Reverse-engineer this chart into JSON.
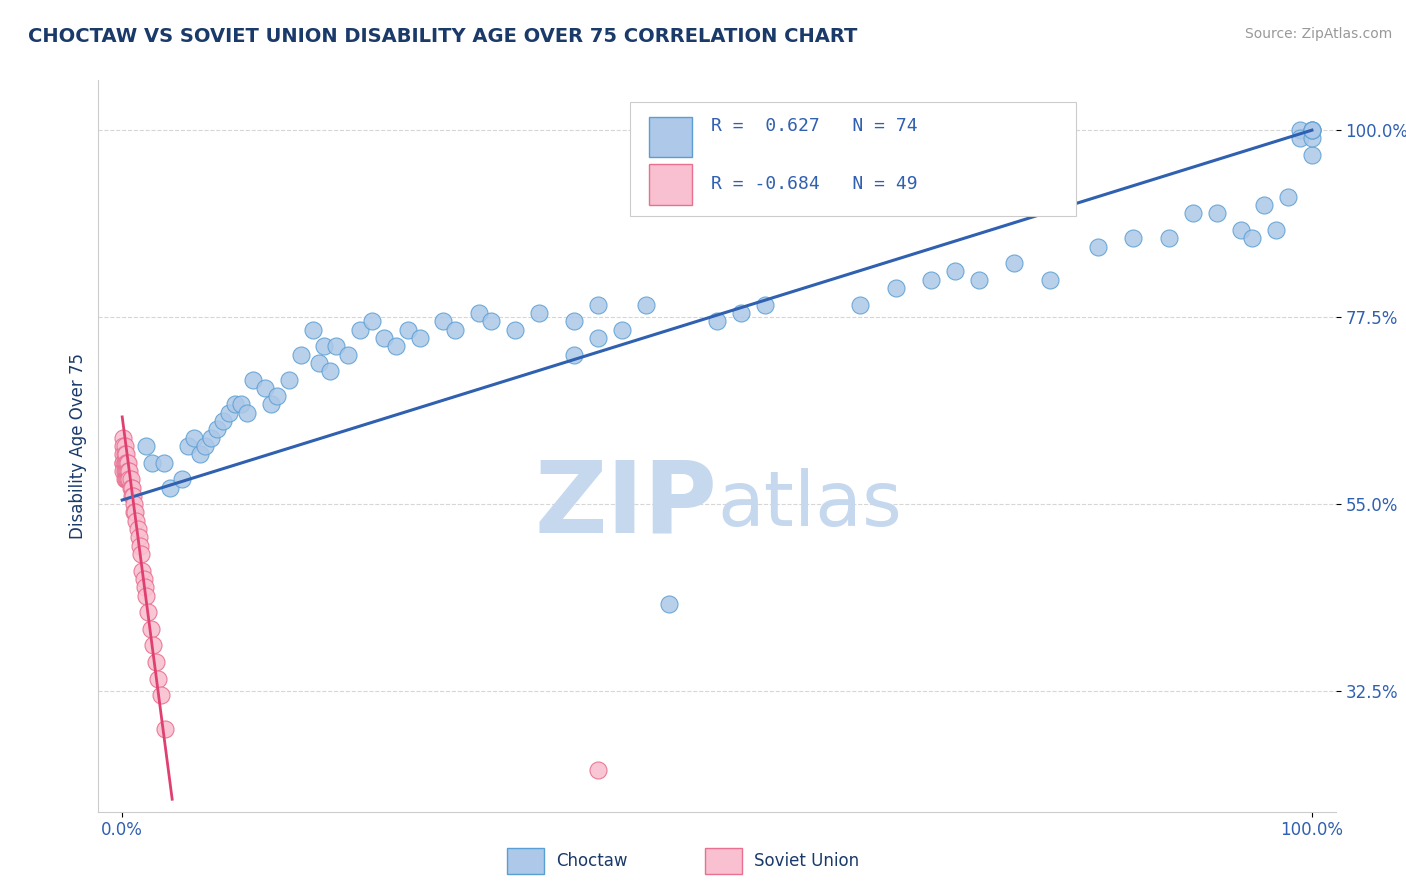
{
  "title": "CHOCTAW VS SOVIET UNION DISABILITY AGE OVER 75 CORRELATION CHART",
  "source": "Source: ZipAtlas.com",
  "ylabel": "Disability Age Over 75",
  "xlim": [
    -0.02,
    1.02
  ],
  "ylim": [
    0.18,
    1.06
  ],
  "yticks": [
    0.325,
    0.55,
    0.775,
    1.0
  ],
  "ytick_labels": [
    "32.5%",
    "55.0%",
    "77.5%",
    "100.0%"
  ],
  "choctaw_R": 0.627,
  "choctaw_N": 74,
  "soviet_R": -0.684,
  "soviet_N": 49,
  "choctaw_color": "#adc8e8",
  "choctaw_edge_color": "#5a9fd4",
  "choctaw_line_color": "#3060b0",
  "soviet_color": "#f8c0d0",
  "soviet_edge_color": "#e87090",
  "soviet_line_color": "#e04070",
  "title_color": "#1a3a6a",
  "axis_label_color": "#1a3a6a",
  "tick_color": "#3060b0",
  "source_color": "#999999",
  "watermark_zip": "ZIP",
  "watermark_atlas": "atlas",
  "watermark_color": "#c5d8ee",
  "choctaw_x": [
    0.02,
    0.025,
    0.035,
    0.04,
    0.05,
    0.055,
    0.06,
    0.065,
    0.07,
    0.075,
    0.08,
    0.085,
    0.09,
    0.095,
    0.1,
    0.105,
    0.11,
    0.12,
    0.125,
    0.13,
    0.14,
    0.15,
    0.16,
    0.165,
    0.17,
    0.175,
    0.18,
    0.19,
    0.2,
    0.21,
    0.22,
    0.23,
    0.24,
    0.25,
    0.27,
    0.28,
    0.3,
    0.31,
    0.33,
    0.35,
    0.38,
    0.4,
    0.42,
    0.44,
    0.46,
    0.5,
    0.52,
    0.54,
    0.38,
    0.4,
    0.62,
    0.65,
    0.68,
    0.7,
    0.72,
    0.75,
    0.78,
    0.82,
    0.85,
    0.88,
    0.9,
    0.92,
    0.94,
    0.95,
    0.96,
    0.97,
    0.98,
    0.99,
    0.99,
    1.0,
    1.0,
    1.0,
    1.0,
    1.0
  ],
  "choctaw_y": [
    0.62,
    0.6,
    0.6,
    0.57,
    0.58,
    0.62,
    0.63,
    0.61,
    0.62,
    0.63,
    0.64,
    0.65,
    0.66,
    0.67,
    0.67,
    0.66,
    0.7,
    0.69,
    0.67,
    0.68,
    0.7,
    0.73,
    0.76,
    0.72,
    0.74,
    0.71,
    0.74,
    0.73,
    0.76,
    0.77,
    0.75,
    0.74,
    0.76,
    0.75,
    0.77,
    0.76,
    0.78,
    0.77,
    0.76,
    0.78,
    0.77,
    0.79,
    0.76,
    0.79,
    0.43,
    0.77,
    0.78,
    0.79,
    0.73,
    0.75,
    0.79,
    0.81,
    0.82,
    0.83,
    0.82,
    0.84,
    0.82,
    0.86,
    0.87,
    0.87,
    0.9,
    0.9,
    0.88,
    0.87,
    0.91,
    0.88,
    0.92,
    1.0,
    0.99,
    0.97,
    1.0,
    0.99,
    1.0,
    1.0
  ],
  "soviet_x": [
    0.001,
    0.001,
    0.001,
    0.001,
    0.001,
    0.001,
    0.002,
    0.002,
    0.002,
    0.002,
    0.002,
    0.002,
    0.003,
    0.003,
    0.003,
    0.003,
    0.004,
    0.004,
    0.004,
    0.005,
    0.005,
    0.005,
    0.006,
    0.006,
    0.007,
    0.007,
    0.008,
    0.008,
    0.009,
    0.01,
    0.01,
    0.011,
    0.012,
    0.013,
    0.014,
    0.015,
    0.016,
    0.017,
    0.018,
    0.019,
    0.02,
    0.022,
    0.024,
    0.026,
    0.028,
    0.03,
    0.033,
    0.036,
    0.4
  ],
  "soviet_y": [
    0.63,
    0.62,
    0.61,
    0.6,
    0.6,
    0.59,
    0.62,
    0.61,
    0.6,
    0.6,
    0.59,
    0.58,
    0.61,
    0.6,
    0.59,
    0.58,
    0.6,
    0.59,
    0.58,
    0.6,
    0.59,
    0.58,
    0.59,
    0.58,
    0.58,
    0.57,
    0.57,
    0.56,
    0.56,
    0.55,
    0.54,
    0.54,
    0.53,
    0.52,
    0.51,
    0.5,
    0.49,
    0.47,
    0.46,
    0.45,
    0.44,
    0.42,
    0.4,
    0.38,
    0.36,
    0.34,
    0.32,
    0.28,
    0.23
  ],
  "choctaw_line_x0": 0.0,
  "choctaw_line_y0": 0.555,
  "choctaw_line_x1": 1.0,
  "choctaw_line_y1": 1.0,
  "soviet_line_x0": 0.0,
  "soviet_line_y0": 0.655,
  "soviet_line_x1": 0.042,
  "soviet_line_y1": 0.195
}
